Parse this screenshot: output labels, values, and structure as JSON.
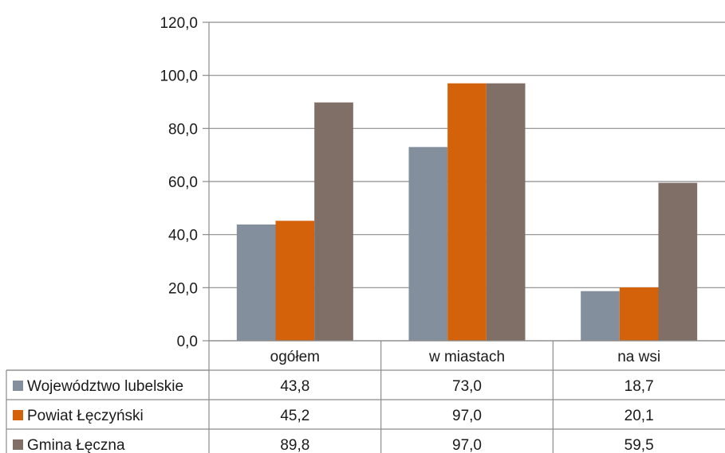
{
  "chart_data": {
    "type": "bar",
    "categories": [
      "ogółem",
      "w miastach",
      "na wsi"
    ],
    "series": [
      {
        "name": "Województwo lubelskie",
        "values": [
          43.8,
          73.0,
          18.7
        ],
        "color": "#848f9e",
        "labels": [
          "43,8",
          "73,0",
          "18,7"
        ]
      },
      {
        "name": "Powiat Łęczyński",
        "values": [
          45.2,
          97.0,
          20.1
        ],
        "color": "#d4620b",
        "labels": [
          "45,2",
          "97,0",
          "20,1"
        ]
      },
      {
        "name": "Gmina Łęczna",
        "values": [
          89.8,
          97.0,
          59.5
        ],
        "color": "#7f6f66",
        "labels": [
          "89,8",
          "97,0",
          "59,5"
        ]
      }
    ],
    "ylim": [
      0,
      120
    ],
    "yticks": [
      0,
      20,
      40,
      60,
      80,
      100,
      120
    ],
    "ytick_labels": [
      "0,0",
      "20,0",
      "40,0",
      "60,0",
      "80,0",
      "100,0",
      "120,0"
    ],
    "grid": true,
    "data_table": true,
    "legend": "in data table, left",
    "title": "",
    "xlabel": "",
    "ylabel": ""
  }
}
